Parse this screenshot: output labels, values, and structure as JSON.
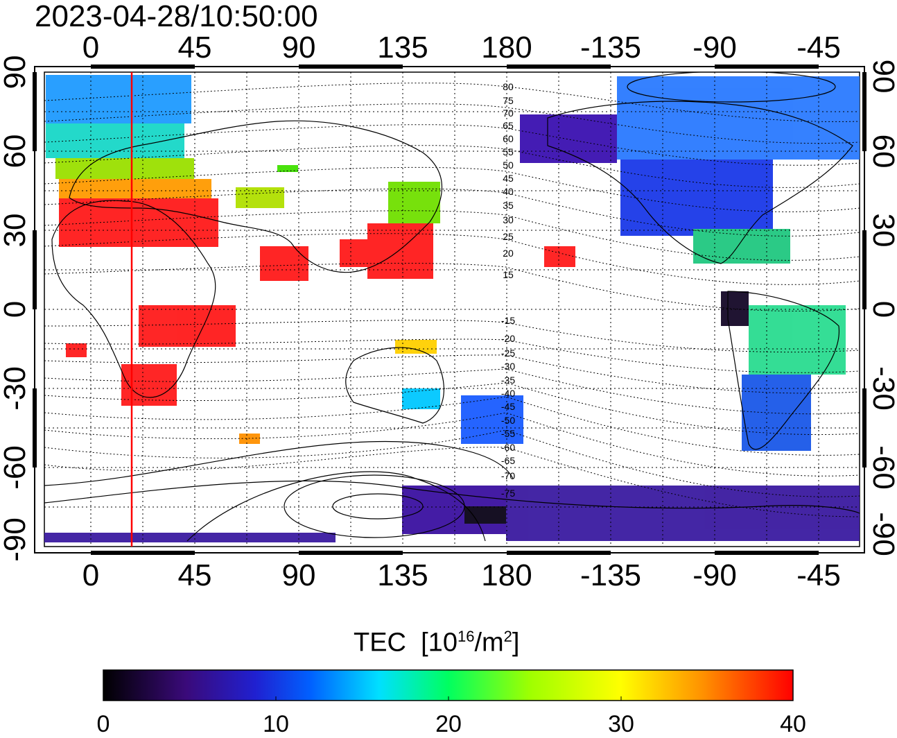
{
  "timestamp": "2023-04-28/10:50:00",
  "map": {
    "type": "global total electron content map",
    "lon_ticks_top": [
      "0",
      "45",
      "90",
      "135",
      "180",
      "-135",
      "-90",
      "-45"
    ],
    "lon_ticks_bottom": [
      "0",
      "45",
      "90",
      "135",
      "180",
      "-135",
      "-90",
      "-45"
    ],
    "lat_ticks_left": [
      "90",
      "60",
      "30",
      "0",
      "-30",
      "-60",
      "-90"
    ],
    "lat_ticks_right": [
      "90",
      "60",
      "30",
      "0",
      "-30",
      "-60",
      "-90"
    ],
    "lon_range": [
      -20,
      330
    ],
    "lat_range": [
      -90,
      90
    ],
    "gridlines": "dotted every 15 degrees",
    "red_meridian_lon": 17,
    "magnetic_lat_labels": [
      "80",
      "75",
      "70",
      "65",
      "60",
      "55",
      "50",
      "45",
      "40",
      "35",
      "30",
      "25",
      "20",
      "15",
      "-15",
      "-20",
      "-25",
      "-30",
      "-35",
      "-40",
      "-45",
      "-50",
      "-55",
      "-60",
      "-65",
      "-70",
      "-75"
    ],
    "colors": {
      "high": "#ff0000",
      "mid": "#00ff00",
      "low": "#2a1aa8",
      "min": "#000000"
    }
  },
  "colorbar": {
    "title": "TEC",
    "unit_prefix": "[10",
    "unit_exp": "16",
    "unit_mid": "/m",
    "unit_exp2": "2",
    "unit_suffix": "]",
    "tick_labels": [
      "0",
      "10",
      "20",
      "30",
      "40"
    ],
    "range": [
      0,
      40
    ],
    "gradient": [
      "#000000",
      "#3a0a7a",
      "#2020d0",
      "#0060ff",
      "#00e0ff",
      "#00ff60",
      "#a0ff00",
      "#ffff00",
      "#ff9000",
      "#ff0000"
    ]
  }
}
